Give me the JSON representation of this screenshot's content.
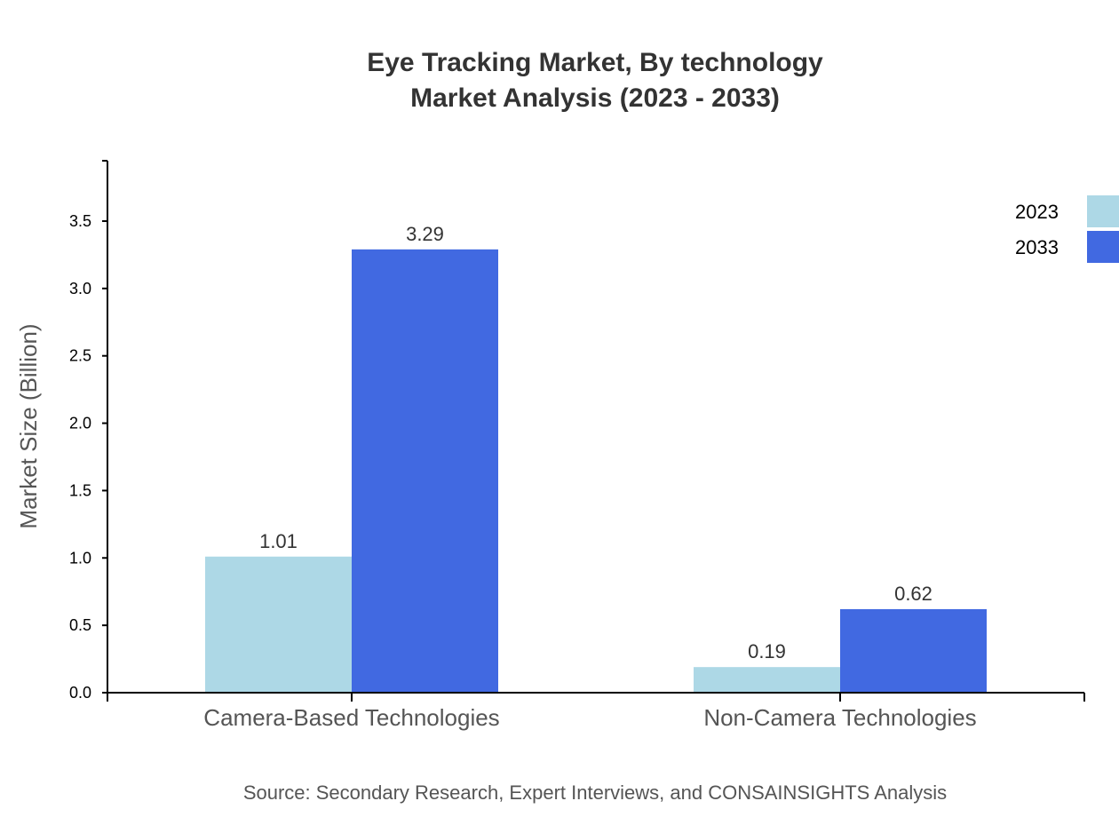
{
  "chart_data": {
    "type": "bar",
    "title": [
      "Eye Tracking Market, By technology",
      "Market Analysis (2023 - 2033)"
    ],
    "xlabel": "",
    "ylabel": "Market Size (Billion)",
    "categories": [
      "Camera-Based Technologies",
      "Non-Camera Technologies"
    ],
    "series": [
      {
        "name": "2023",
        "values": [
          1.01,
          0.19
        ],
        "color": "#ADD8E6"
      },
      {
        "name": "2033",
        "values": [
          3.29,
          0.62
        ],
        "color": "#4169E1"
      }
    ],
    "ylim": [
      0,
      3.948
    ],
    "yticks": [
      "0.0",
      "0.5",
      "1.0",
      "1.5",
      "2.0",
      "2.5",
      "3.0",
      "3.5"
    ],
    "grid": false,
    "legend": "top-right",
    "source": "Source: Secondary Research, Expert Interviews, and CONSAINSIGHTS Analysis"
  }
}
